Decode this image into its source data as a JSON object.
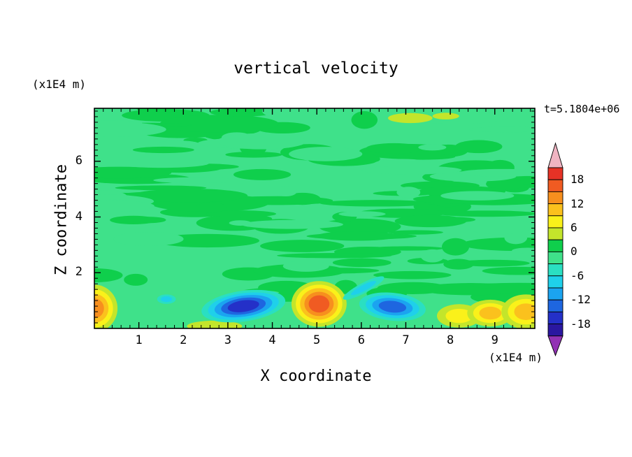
{
  "title": "vertical velocity",
  "time_label": "t=5.1804e+06",
  "axes": {
    "x": {
      "label": "X coordinate",
      "unit": "(x1E4 m)",
      "tick_labels": [
        "1",
        "2",
        "3",
        "4",
        "5",
        "6",
        "7",
        "8",
        "9"
      ],
      "tick_values": [
        1,
        2,
        3,
        4,
        5,
        6,
        7,
        8,
        9
      ]
    },
    "z": {
      "label": "Z coordinate",
      "unit": "(x1E4 m)",
      "tick_labels": [
        "2",
        "4",
        "6"
      ],
      "tick_values": [
        2,
        4,
        6
      ]
    }
  },
  "chart_data": {
    "type": "heatmap",
    "subtype": "filled-contour",
    "title": "vertical velocity",
    "xlabel": "X coordinate",
    "ylabel": "Z coordinate",
    "x_unit": "(x1E4 m)",
    "y_unit": "(x1E4 m)",
    "time_annotation": "t=5.1804e+06",
    "xlim": [
      0,
      9.9
    ],
    "zlim": [
      0,
      7.9
    ],
    "contour_interval": 3,
    "value_range": [
      -21,
      21
    ],
    "field": {
      "base_color": "#3fe18a",
      "base_value_range": [
        -3,
        0
      ],
      "patch_color": "#0fcf4c",
      "patch_value_range": [
        0,
        3
      ]
    },
    "colorbar": {
      "tick_values": [
        18,
        12,
        6,
        0,
        -6,
        -12,
        -18
      ],
      "tick_labels": [
        "18",
        "12",
        "6",
        "0",
        "-6",
        "-12",
        "-18"
      ],
      "top_arrow_color": "#f0b4c2",
      "bottom_arrow_color": "#9232b4",
      "segments_top_to_bottom": [
        {
          "min": 18,
          "max": 21,
          "color": "#e63226"
        },
        {
          "min": 15,
          "max": 18,
          "color": "#f05b22"
        },
        {
          "min": 12,
          "max": 15,
          "color": "#f78f1e"
        },
        {
          "min": 9,
          "max": 12,
          "color": "#fbc11d"
        },
        {
          "min": 6,
          "max": 9,
          "color": "#faf11a"
        },
        {
          "min": 3,
          "max": 6,
          "color": "#c3e52b"
        },
        {
          "min": 0,
          "max": 3,
          "color": "#0fcf4c"
        },
        {
          "min": -3,
          "max": 0,
          "color": "#3fe18a"
        },
        {
          "min": -6,
          "max": -3,
          "color": "#2adfc2"
        },
        {
          "min": -9,
          "max": -6,
          "color": "#1fd0ea"
        },
        {
          "min": -12,
          "max": -9,
          "color": "#1ba4f0"
        },
        {
          "min": -15,
          "max": -12,
          "color": "#1e66e0"
        },
        {
          "min": -18,
          "max": -15,
          "color": "#2430c8"
        },
        {
          "min": -21,
          "max": -18,
          "color": "#2a17a0"
        }
      ]
    },
    "features": [
      {
        "name": "updraft-left-edge",
        "x": 0.0,
        "z": 0.72,
        "rx": 0.52,
        "rz": 0.85,
        "peak": 13,
        "tilt": 0
      },
      {
        "name": "updraft-bottom-streak",
        "x": 2.7,
        "z": 0.08,
        "rx": 0.62,
        "rz": 0.2,
        "peak": 5,
        "tilt": 0
      },
      {
        "name": "downdraft-small-west",
        "x": 1.62,
        "z": 1.05,
        "rx": 0.21,
        "rz": 0.17,
        "peak": -7,
        "tilt": 0
      },
      {
        "name": "downdraft-west",
        "x": 3.35,
        "z": 0.8,
        "rx": 0.95,
        "rz": 0.55,
        "peak": -17,
        "tilt": -8
      },
      {
        "name": "updraft-central",
        "x": 5.05,
        "z": 0.88,
        "rx": 0.62,
        "rz": 0.82,
        "peak": 17,
        "tilt": 0
      },
      {
        "name": "downdraft-east",
        "x": 6.7,
        "z": 0.78,
        "rx": 0.75,
        "rz": 0.5,
        "peak": -13,
        "tilt": 6
      },
      {
        "name": "downdraft-east-streak",
        "x": 6.05,
        "z": 1.45,
        "rx": 0.52,
        "rz": 0.18,
        "peak": -7,
        "tilt": -28
      },
      {
        "name": "updraft-right-a",
        "x": 8.2,
        "z": 0.45,
        "rx": 0.5,
        "rz": 0.42,
        "peak": 7,
        "tilt": 0
      },
      {
        "name": "updraft-right-b",
        "x": 8.9,
        "z": 0.55,
        "rx": 0.52,
        "rz": 0.48,
        "peak": 10,
        "tilt": 0
      },
      {
        "name": "updraft-right-c",
        "x": 9.7,
        "z": 0.6,
        "rx": 0.55,
        "rz": 0.62,
        "peak": 11,
        "tilt": 0
      },
      {
        "name": "anomaly-top-a",
        "x": 7.1,
        "z": 7.55,
        "rx": 0.5,
        "rz": 0.18,
        "peak": 5,
        "tilt": 0
      },
      {
        "name": "anomaly-top-b",
        "x": 7.9,
        "z": 7.62,
        "rx": 0.3,
        "rz": 0.12,
        "peak": 4,
        "tilt": 0
      }
    ]
  }
}
